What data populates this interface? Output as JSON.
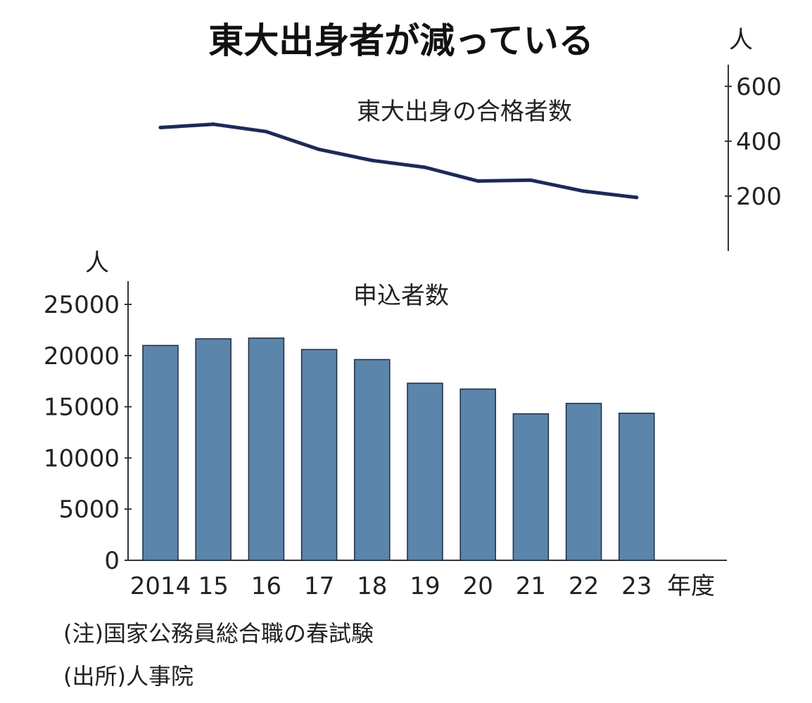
{
  "title": "東大出身者が減っている",
  "notes": {
    "note": "(注)国家公務員総合職の春試験",
    "source": "(出所)人事院"
  },
  "chart_data": [
    {
      "type": "line",
      "series_label": "東大出身の合格者数",
      "unit": "人",
      "x": [
        "2014",
        "15",
        "16",
        "17",
        "18",
        "19",
        "20",
        "21",
        "22",
        "23"
      ],
      "values": [
        450,
        462,
        435,
        370,
        330,
        305,
        255,
        258,
        218,
        195
      ],
      "yticks": [
        "200",
        "400",
        "600"
      ],
      "ylim": [
        0,
        620
      ],
      "color": "#1b2a5c"
    },
    {
      "type": "bar",
      "series_label": "申込者数",
      "unit": "人",
      "categories": [
        "2014",
        "15",
        "16",
        "17",
        "18",
        "19",
        "20",
        "21",
        "22",
        "23"
      ],
      "values": [
        20990,
        21640,
        21710,
        20590,
        19610,
        17300,
        16730,
        14310,
        15330,
        14370
      ],
      "yticks": [
        "0",
        "5000",
        "10000",
        "15000",
        "20000",
        "25000"
      ],
      "ylim": [
        0,
        25000
      ],
      "xlabel_suffix": "年度",
      "color": "#5b85ab"
    }
  ]
}
